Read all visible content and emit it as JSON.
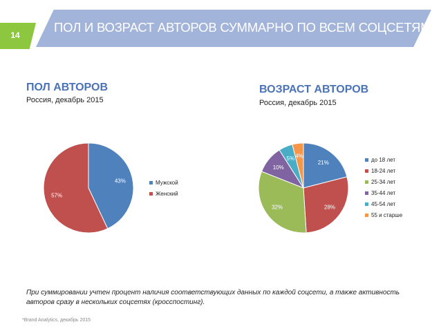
{
  "slide": {
    "number": "14",
    "title": "ПОЛ И ВОЗРАСТ АВТОРОВ СУММАРНО ПО ВСЕМ СОЦСЕТЯМ",
    "note": "При суммировании учтен процент наличия соответствующих данных по каждой соцсети, а также активность авторов сразу в нескольких соцсетях (кросспостинг).",
    "source": "*Brand Analytics, декабрь 2015"
  },
  "colors": {
    "banner": "#a2b4d9",
    "accent_green": "#8dc63f",
    "section_title": "#4a73b7"
  },
  "chart_data": [
    {
      "type": "pie",
      "title": "ПОЛ АВТОРОВ",
      "subtitle": "Россия, декабрь 2015",
      "categories": [
        "Мужской",
        "Женский"
      ],
      "values": [
        43,
        57
      ],
      "labels": [
        "43%",
        "57%"
      ],
      "colors": [
        "#4f81bd",
        "#c0504d"
      ],
      "legend": "right"
    },
    {
      "type": "pie",
      "title": "ВОЗРАСТ АВТОРОВ",
      "subtitle": "Россия, декабрь 2015",
      "categories": [
        "до 18 лет",
        "18-24 лет",
        "25-34 лет",
        "35-44 лет",
        "45-54 лет",
        "55 и старше"
      ],
      "values": [
        21,
        28,
        32,
        10,
        5,
        4
      ],
      "labels": [
        "21%",
        "28%",
        "32%",
        "10%",
        "5%",
        "4%"
      ],
      "colors": [
        "#4f81bd",
        "#c0504d",
        "#9bbb59",
        "#8064a2",
        "#4bacc6",
        "#f79646"
      ],
      "legend": "right"
    }
  ]
}
